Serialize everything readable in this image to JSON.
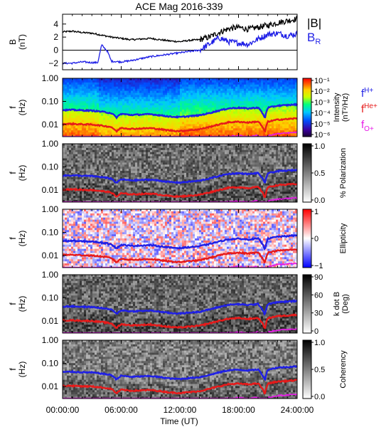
{
  "title": "ACE Mag 2016-339",
  "xaxis": {
    "label": "Time (UT)",
    "ticks": [
      "00:00:00",
      "06:00:00",
      "12:00:00",
      "18:00:00",
      "24:00:00"
    ],
    "range_hours": [
      0,
      24
    ]
  },
  "colors": {
    "B_total": "#000000",
    "B_R": "#1f1fe6",
    "f_H": "#1f1fe6",
    "f_He": "#e61a1a",
    "f_O": "#e61ae6"
  },
  "chart_data": [
    {
      "type": "line",
      "panel": "magnetic-field",
      "ylabel": "B",
      "yunits": "(nT)",
      "yticks": [
        "4",
        "2",
        "0",
        "−2"
      ],
      "ylim": [
        -3,
        5.5
      ],
      "legend": [
        {
          "label": "|B|",
          "color": "#000000"
        },
        {
          "label": "B",
          "sub": "R",
          "color": "#1f1fe6"
        }
      ],
      "series": [
        {
          "name": "|B|",
          "x_hours": [
            0,
            1,
            2,
            3,
            4,
            5,
            6,
            7,
            8,
            9,
            10,
            11,
            12,
            13,
            14,
            15,
            16,
            17,
            18,
            19,
            20,
            21,
            22,
            23,
            24
          ],
          "values": [
            2.8,
            2.9,
            2.7,
            2.6,
            2.3,
            2.0,
            1.8,
            1.6,
            1.7,
            1.8,
            1.6,
            1.4,
            1.3,
            1.5,
            1.6,
            2.0,
            2.7,
            3.3,
            3.5,
            3.2,
            3.5,
            3.8,
            4.2,
            4.5,
            4.8
          ]
        },
        {
          "name": "B_R",
          "x_hours": [
            0,
            1,
            2,
            3,
            3.6,
            4,
            4.6,
            5,
            6,
            7,
            8,
            9,
            10,
            11,
            12,
            13,
            14,
            15,
            16,
            17,
            18,
            19,
            20,
            21,
            22,
            23,
            24
          ],
          "values": [
            -2.0,
            -2.0,
            -1.8,
            -1.9,
            -1.9,
            0.8,
            -0.2,
            -1.7,
            -1.8,
            -1.6,
            -1.3,
            -1.0,
            -0.8,
            -0.6,
            -0.4,
            -0.2,
            0.0,
            0.9,
            1.9,
            1.3,
            1.1,
            0.9,
            1.7,
            2.4,
            2.6,
            2.2,
            2.5
          ]
        }
      ]
    },
    {
      "type": "heatmap",
      "panel": "power-spectrum",
      "ylabel": "f",
      "yunits": "(Hz)",
      "yticks": [
        "1.00",
        "0.10",
        "0.01"
      ],
      "ylim_hz": [
        0.003,
        1.0
      ],
      "ylog": true,
      "colorbar": {
        "label": "Intensity",
        "units": "(nT²/Hz)",
        "ticks": [
          "10⁻¹",
          "10⁻²",
          "10⁻³",
          "10⁻⁴",
          "10⁻⁵",
          "10⁻⁶"
        ],
        "range": [
          -6,
          -1
        ]
      },
      "gyro_labels": [
        {
          "base": "f",
          "sup": "H+",
          "color": "#1f1fe6"
        },
        {
          "base": "f",
          "sup": "He+",
          "color": "#e61a1a"
        },
        {
          "base": "f",
          "sub": "O+",
          "color": "#e61ae6"
        }
      ]
    },
    {
      "type": "heatmap",
      "panel": "polarization",
      "ylabel": "f",
      "yunits": "(Hz)",
      "yticks": [
        "1.00",
        "0.10",
        "0.01"
      ],
      "colorbar": {
        "label": "% Polarization",
        "ticks": [
          "1.0",
          "0.5",
          "0.0"
        ],
        "range": [
          0,
          1
        ]
      }
    },
    {
      "type": "heatmap",
      "panel": "ellipticity",
      "ylabel": "f",
      "yunits": "(Hz)",
      "yticks": [
        "1.00",
        "0.10",
        "0.01"
      ],
      "colorbar": {
        "label": "Ellipticity",
        "ticks": [
          "1",
          "0",
          "−1"
        ],
        "range": [
          -1,
          1
        ]
      }
    },
    {
      "type": "heatmap",
      "panel": "wave-normal-angle",
      "ylabel": "f",
      "yunits": "(Hz)",
      "yticks": [
        "1.00",
        "0.10",
        "0.01"
      ],
      "colorbar": {
        "label": "k dot B",
        "units": "(Deg)",
        "ticks": [
          "90",
          "60",
          "30",
          "0"
        ],
        "range": [
          0,
          90
        ]
      }
    },
    {
      "type": "heatmap",
      "panel": "coherency",
      "ylabel": "f",
      "yunits": "(Hz)",
      "yticks": [
        "1.00",
        "0.10",
        "0.01"
      ],
      "colorbar": {
        "label": "Coherency",
        "ticks": [
          "1.0",
          "0.5",
          "0.0"
        ],
        "range": [
          0,
          1
        ]
      }
    }
  ],
  "gyrofrequency_lines": {
    "x_hours": [
      0,
      1,
      2,
      3,
      4,
      5,
      5.5,
      6,
      7,
      8,
      9,
      10,
      11,
      12,
      13,
      14,
      15,
      16,
      17,
      18,
      19,
      20,
      20.7,
      21,
      22,
      23,
      24
    ],
    "f_H_hz": [
      0.042,
      0.043,
      0.041,
      0.04,
      0.036,
      0.031,
      0.02,
      0.029,
      0.026,
      0.027,
      0.028,
      0.025,
      0.022,
      0.021,
      0.023,
      0.025,
      0.031,
      0.04,
      0.05,
      0.053,
      0.049,
      0.054,
      0.018,
      0.053,
      0.065,
      0.069,
      0.074
    ],
    "f_He_hz": [
      0.0105,
      0.0107,
      0.0102,
      0.01,
      0.009,
      0.0078,
      0.005,
      0.0072,
      0.0065,
      0.0067,
      0.007,
      0.0062,
      0.0055,
      0.0052,
      0.0057,
      0.0062,
      0.0078,
      0.01,
      0.0125,
      0.0132,
      0.0122,
      0.0135,
      0.0045,
      0.0132,
      0.0162,
      0.0172,
      0.0185
    ],
    "f_O_hz": [
      0.0026,
      0.0027,
      0.0026,
      0.0025,
      0.0023,
      0.002,
      0.0013,
      0.0018,
      0.0016,
      0.0017,
      0.0017,
      0.0016,
      0.0014,
      0.0013,
      0.0014,
      0.0016,
      0.002,
      0.0025,
      0.0031,
      0.0033,
      0.003,
      0.0034,
      0.0011,
      0.0033,
      0.004,
      0.0043,
      0.0046
    ]
  }
}
